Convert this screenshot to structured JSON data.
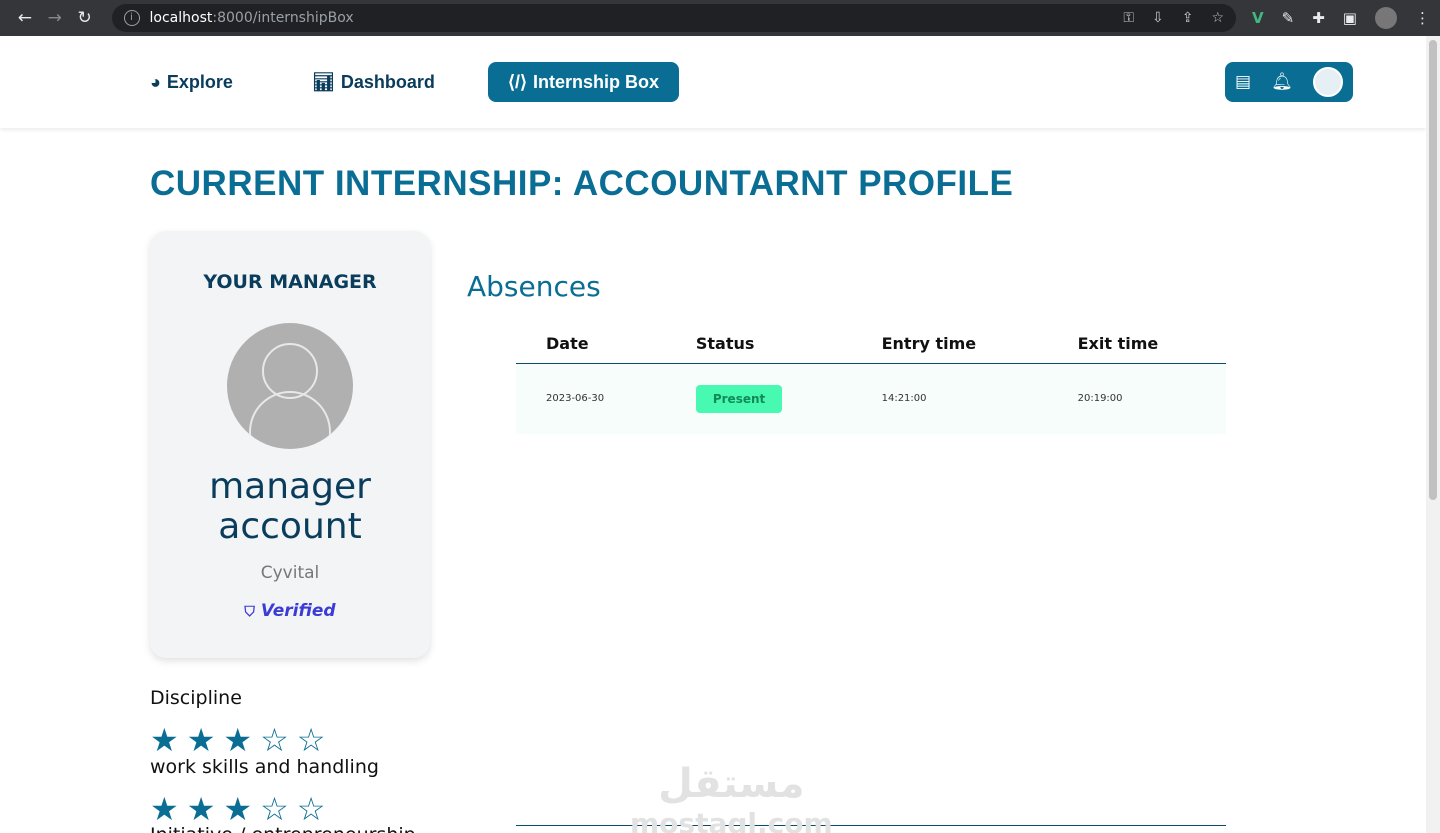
{
  "browser": {
    "url_host": "localhost",
    "url_path": ":8000/internshipBox"
  },
  "nav": {
    "items": [
      {
        "label": "Explore",
        "icon": "globe-icon"
      },
      {
        "label": "Dashboard",
        "icon": "chart-icon"
      },
      {
        "label": "Internship Box",
        "icon": "code-icon",
        "active": true
      }
    ]
  },
  "page": {
    "title": "CURRENT INTERNSHIP: ACCOUNTARNT PROFILE"
  },
  "manager": {
    "label": "YOUR MANAGER",
    "name": "manager account",
    "company": "Cyvital",
    "verified": "Verified"
  },
  "ratings": [
    {
      "label": "Discipline",
      "stars": 3,
      "max": 5
    },
    {
      "label": "work skills and handling",
      "stars": 3,
      "max": 5
    },
    {
      "label": "Initiative / entrepreneurship"
    }
  ],
  "absences": {
    "title": "Absences",
    "columns": [
      "Date",
      "Status",
      "Entry time",
      "Exit time"
    ],
    "rows": [
      {
        "date": "2023-06-30",
        "status": "Present",
        "entry": "14:21:00",
        "exit": "20:19:00"
      }
    ]
  },
  "watermark": {
    "arabic": "مستقل",
    "latin": "mostaql.com"
  },
  "colors": {
    "primary": "#0a6e94",
    "present": "#47f9b1",
    "verified": "#3b3bd6"
  }
}
